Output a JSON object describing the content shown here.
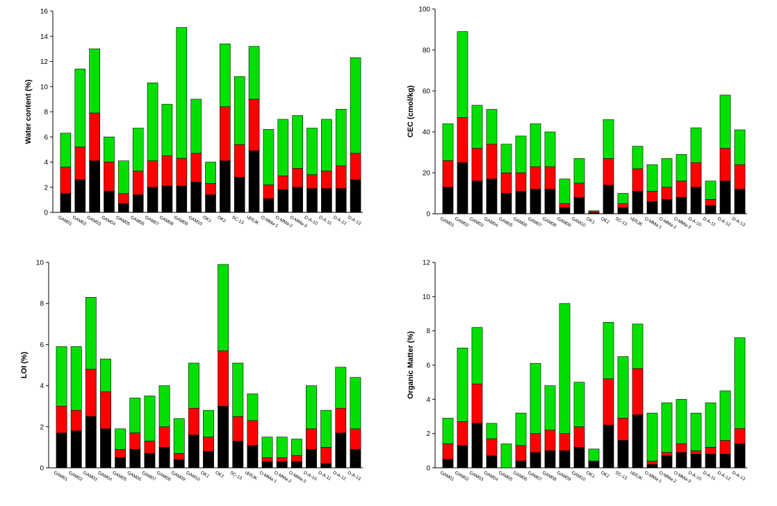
{
  "chart_data": [
    {
      "type": "bar",
      "stacked": true,
      "ylabel": "Water content (%)",
      "ylim": [
        0,
        16
      ],
      "yticks": [
        0,
        2,
        4,
        6,
        8,
        10,
        12,
        14,
        16
      ],
      "categories": [
        "GAM01",
        "GAM02",
        "GAM03",
        "GAM04",
        "GAM05",
        "GAM06",
        "GAM07",
        "GAM08",
        "GAM09",
        "GAM10",
        "OK1",
        "OK2",
        "SC-13",
        "내리JK",
        "O-MMa-1",
        "O-MMa-2",
        "O-MMa-3",
        "D-A-10",
        "D-A-11",
        "D-A-12",
        "D-A-13"
      ],
      "series": [
        {
          "color": "#000000",
          "values": [
            1.5,
            2.6,
            4.1,
            1.7,
            0.7,
            1.4,
            2.0,
            2.1,
            2.1,
            2.4,
            1.4,
            4.1,
            2.8,
            4.9,
            1.1,
            1.8,
            2.0,
            1.9,
            1.9,
            1.9,
            2.6
          ]
        },
        {
          "color": "#ff0000",
          "values": [
            2.1,
            2.6,
            3.8,
            2.3,
            0.8,
            1.9,
            2.1,
            2.4,
            2.2,
            2.3,
            0.9,
            4.3,
            2.6,
            4.1,
            1.1,
            1.1,
            1.5,
            1.1,
            1.4,
            1.8,
            2.1
          ]
        },
        {
          "color": "#00e000",
          "values": [
            2.7,
            6.2,
            5.1,
            2.0,
            2.6,
            3.4,
            6.2,
            4.1,
            10.4,
            4.3,
            1.7,
            5.0,
            5.4,
            4.2,
            4.4,
            4.5,
            4.2,
            3.7,
            4.1,
            4.5,
            7.6
          ]
        }
      ]
    },
    {
      "type": "bar",
      "stacked": true,
      "ylabel": "CEC (cmol/kg)",
      "ylim": [
        0,
        100
      ],
      "yticks": [
        0,
        20,
        40,
        60,
        80,
        100
      ],
      "categories": [
        "GAM01",
        "GAM02",
        "GAM03",
        "GAM04",
        "GAM05",
        "GAM06",
        "GAM07",
        "GAM08",
        "GAM09",
        "GAM10",
        "OK1",
        "OK2",
        "SC-13",
        "내리JK",
        "O-MMa-1",
        "O-MMa-2",
        "O-MMa-3",
        "D-A-10",
        "D-A-11",
        "D-A-12",
        "D-A-13"
      ],
      "series": [
        {
          "color": "#000000",
          "values": [
            13,
            25,
            16,
            17,
            10,
            11,
            12,
            12,
            3,
            8,
            0.5,
            14,
            3,
            11,
            6,
            7,
            8,
            13,
            4,
            16,
            12
          ]
        },
        {
          "color": "#ff0000",
          "values": [
            13,
            22,
            16,
            17,
            10,
            9,
            11,
            11,
            2,
            7,
            0.5,
            13,
            2,
            11,
            5,
            6,
            8,
            12,
            3,
            16,
            12
          ]
        },
        {
          "color": "#00e000",
          "values": [
            18,
            42,
            21,
            17,
            14,
            18,
            21,
            17,
            12,
            12,
            0.5,
            19,
            5,
            11,
            13,
            14,
            13,
            17,
            9,
            26,
            17
          ]
        }
      ]
    },
    {
      "type": "bar",
      "stacked": true,
      "ylabel": "LOI (%)",
      "ylim": [
        0,
        10
      ],
      "yticks": [
        0,
        2,
        4,
        6,
        8,
        10
      ],
      "categories": [
        "GAM01",
        "GAM02",
        "GAM03",
        "GAM04",
        "GAM05",
        "GAM06",
        "GAM07",
        "GAM08",
        "GAM09",
        "GAM10",
        "OK1",
        "OK2",
        "SC-13",
        "내리JK",
        "O-MMa-1",
        "O-MMa-2",
        "O-MMa-3",
        "D-A-10",
        "D-A-11",
        "D-A-12",
        "D-A-13"
      ],
      "series": [
        {
          "color": "#000000",
          "values": [
            1.7,
            1.8,
            2.5,
            1.9,
            0.5,
            0.9,
            0.7,
            1.0,
            0.4,
            1.6,
            0.8,
            3.0,
            1.3,
            1.1,
            0.3,
            0.3,
            0.3,
            0.9,
            0.2,
            1.7,
            0.9
          ]
        },
        {
          "color": "#ff0000",
          "values": [
            1.3,
            1.0,
            2.3,
            1.8,
            0.4,
            0.8,
            0.6,
            1.0,
            0.3,
            1.3,
            0.7,
            2.7,
            1.2,
            1.2,
            0.2,
            0.2,
            0.3,
            1.0,
            0.8,
            1.2,
            1.0
          ]
        },
        {
          "color": "#00e000",
          "values": [
            2.9,
            3.1,
            3.5,
            1.6,
            1.0,
            1.7,
            2.2,
            2.0,
            1.7,
            2.2,
            1.3,
            4.2,
            2.6,
            1.3,
            1.0,
            1.0,
            0.8,
            2.1,
            1.8,
            2.0,
            2.5
          ]
        }
      ]
    },
    {
      "type": "bar",
      "stacked": true,
      "ylabel": "Organic Matter  (%)",
      "ylim": [
        0,
        12
      ],
      "yticks": [
        0,
        2,
        4,
        6,
        8,
        10,
        12
      ],
      "categories": [
        "GAM01",
        "GAM02",
        "GAM03",
        "GAM04",
        "GAM05",
        "GAM06",
        "GAM07",
        "GAM08",
        "GAM09",
        "GAM10",
        "OK1",
        "OK2",
        "SC-13",
        "내리JK",
        "O-MMa-1",
        "O-MMa-2",
        "O-MMa-3",
        "D-A-10",
        "D-A-11",
        "D-A-12",
        "D-A-13"
      ],
      "series": [
        {
          "color": "#000000",
          "values": [
            0.5,
            1.3,
            2.6,
            0.7,
            0,
            0.4,
            0.9,
            1.0,
            1.0,
            1.2,
            0.4,
            2.5,
            1.6,
            3.1,
            0.2,
            0.7,
            0.9,
            0.8,
            0.8,
            0.8,
            1.4
          ]
        },
        {
          "color": "#ff0000",
          "values": [
            0.9,
            1.4,
            2.3,
            1.0,
            0,
            0.9,
            1.1,
            1.2,
            1.0,
            1.2,
            0,
            2.7,
            1.3,
            2.7,
            0.2,
            0.2,
            0.5,
            0.2,
            0.4,
            0.8,
            0.9
          ]
        },
        {
          "color": "#00e000",
          "values": [
            1.5,
            4.3,
            3.3,
            0.9,
            1.4,
            1.9,
            4.1,
            2.6,
            7.6,
            2.6,
            0.7,
            3.3,
            3.6,
            2.6,
            2.8,
            2.9,
            2.6,
            2.2,
            2.6,
            2.9,
            5.3
          ]
        }
      ]
    }
  ]
}
